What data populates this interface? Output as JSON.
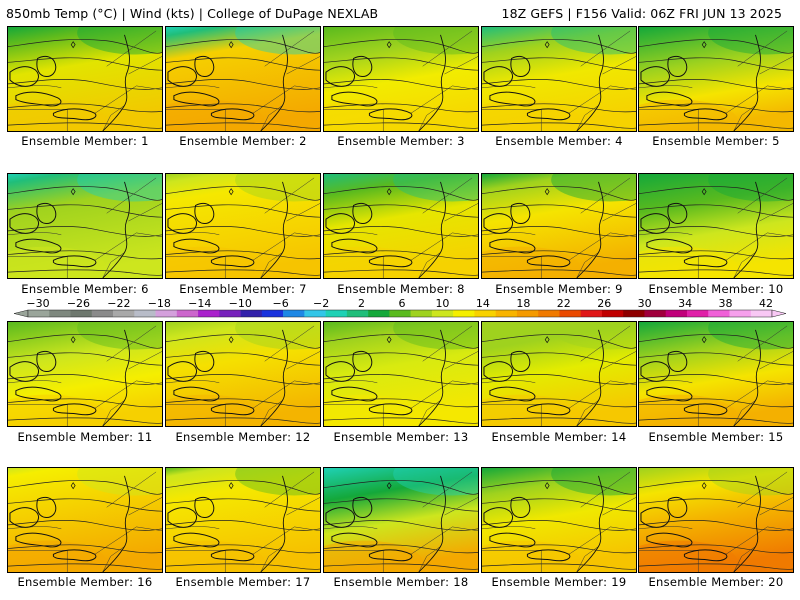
{
  "header": {
    "left_title": "850mb Temp (°C) | Wind (kts) | College of DuPage NEXLAB",
    "right_title": "18Z GEFS | F156 Valid: 06Z FRI JUN 13 2025"
  },
  "colorbar": {
    "labels": [
      "-30",
      "-26",
      "-22",
      "-18",
      "-14",
      "-10",
      "-6",
      "-2",
      "2",
      "6",
      "10",
      "14",
      "18",
      "22",
      "26",
      "30",
      "34",
      "38",
      "42"
    ],
    "colors": [
      "#9aa59a",
      "#7e887e",
      "#6e786e",
      "#8a8a8a",
      "#a8a8a8",
      "#b8bcc8",
      "#d4a0dc",
      "#cc66cc",
      "#aa22cc",
      "#7722bb",
      "#3322aa",
      "#1a33dd",
      "#1e88e5",
      "#33c6e8",
      "#1fd1b5",
      "#20be7a",
      "#14a83a",
      "#5aba1e",
      "#9fd21e",
      "#cde61e",
      "#f5ef00",
      "#f8d200",
      "#f8b400",
      "#f49a00",
      "#f07a00",
      "#ea4a00",
      "#e01818",
      "#c00000",
      "#8e0000",
      "#a0003c",
      "#c0007a",
      "#e020a8",
      "#f060d8",
      "#f6a0ec",
      "#f8c8f4"
    ]
  },
  "members": [
    {
      "caption": "Ensemble Member: 1",
      "warmth": 0.45,
      "base": "#e2e400",
      "warm": "#f2c800",
      "cool": "#5cba1e",
      "cold": "#14a83a"
    },
    {
      "caption": "Ensemble Member: 2",
      "warmth": 0.3,
      "base": "#f5d000",
      "warm": "#f4a800",
      "cool": "#20be7a",
      "cold": "#1fd1b5"
    },
    {
      "caption": "Ensemble Member: 3",
      "warmth": 0.6,
      "base": "#f2ec00",
      "warm": "#f6d800",
      "cool": "#9fd21e",
      "cold": "#5aba1e"
    },
    {
      "caption": "Ensemble Member: 4",
      "warmth": 0.55,
      "base": "#f0e800",
      "warm": "#f6d200",
      "cool": "#9fd21e",
      "cold": "#20be7a"
    },
    {
      "caption": "Ensemble Member: 5",
      "warmth": 0.72,
      "base": "#f5e400",
      "warm": "#f4b800",
      "cool": "#9fd21e",
      "cold": "#14a83a"
    },
    {
      "caption": "Ensemble Member: 6",
      "warmth": 0.35,
      "base": "#9fd21e",
      "warm": "#cde61e",
      "cool": "#20be7a",
      "cold": "#1fd1b5"
    },
    {
      "caption": "Ensemble Member: 7",
      "warmth": 0.2,
      "base": "#f5e800",
      "warm": "#f6c400",
      "cool": "#cde61e",
      "cold": "#9fd21e"
    },
    {
      "caption": "Ensemble Member: 8",
      "warmth": 0.5,
      "base": "#e6e600",
      "warm": "#f6d200",
      "cool": "#5aba1e",
      "cold": "#20be7a"
    },
    {
      "caption": "Ensemble Member: 9",
      "warmth": 0.45,
      "base": "#f5e400",
      "warm": "#f4b000",
      "cool": "#9fd21e",
      "cold": "#14a83a"
    },
    {
      "caption": "Ensemble Member: 10",
      "warmth": 0.65,
      "base": "#cde61e",
      "warm": "#f5e400",
      "cool": "#5aba1e",
      "cold": "#14a83a"
    },
    {
      "caption": "Ensemble Member: 11",
      "warmth": 0.7,
      "base": "#f5ee00",
      "warm": "#f6d000",
      "cool": "#cde61e",
      "cold": "#5aba1e"
    },
    {
      "caption": "Ensemble Member: 12",
      "warmth": 0.45,
      "base": "#f5e000",
      "warm": "#f4b400",
      "cool": "#cde61e",
      "cold": "#9fd21e"
    },
    {
      "caption": "Ensemble Member: 13",
      "warmth": 0.5,
      "base": "#d8ea10",
      "warm": "#f5e800",
      "cool": "#9fd21e",
      "cold": "#5aba1e"
    },
    {
      "caption": "Ensemble Member: 14",
      "warmth": 0.55,
      "base": "#e4ec00",
      "warm": "#f6c800",
      "cool": "#9fd21e",
      "cold": "#9fd21e"
    },
    {
      "caption": "Ensemble Member: 15",
      "warmth": 0.65,
      "base": "#f5e400",
      "warm": "#f4b000",
      "cool": "#9fd21e",
      "cold": "#14a83a"
    },
    {
      "caption": "Ensemble Member: 16",
      "warmth": 0.35,
      "base": "#f5d800",
      "warm": "#f4a800",
      "cool": "#f5ee00",
      "cold": "#cde61e"
    },
    {
      "caption": "Ensemble Member: 17",
      "warmth": 0.3,
      "base": "#f5e800",
      "warm": "#f6c000",
      "cool": "#cde61e",
      "cold": "#5aba1e"
    },
    {
      "caption": "Ensemble Member: 18",
      "warmth": 0.6,
      "base": "#cde61e",
      "warm": "#f4a800",
      "cool": "#14a83a",
      "cold": "#1fd1b5"
    },
    {
      "caption": "Ensemble Member: 19",
      "warmth": 0.55,
      "base": "#f0e800",
      "warm": "#f6c400",
      "cool": "#9fd21e",
      "cold": "#14a83a"
    },
    {
      "caption": "Ensemble Member: 20",
      "warmth": 0.55,
      "base": "#f4b400",
      "warm": "#f07a00",
      "cool": "#f5e400",
      "cold": "#9fd21e"
    }
  ]
}
